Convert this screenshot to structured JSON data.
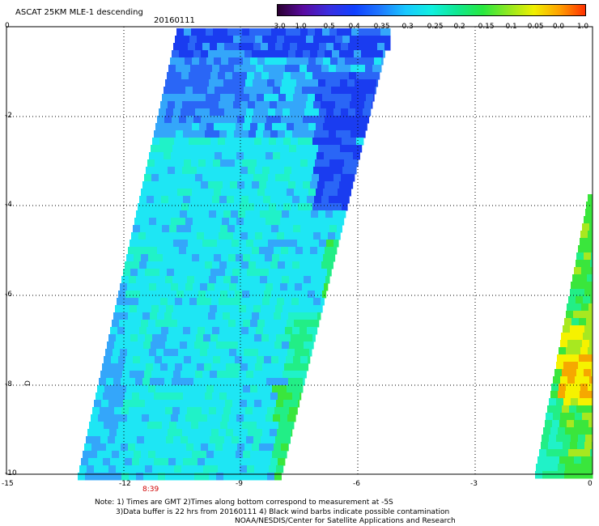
{
  "header": {
    "title": "ASCAT 25KM MLE-1 descending",
    "date": "20160111"
  },
  "colorbar": {
    "labels": [
      "-3.0",
      "-1.0",
      "-0.5",
      "-0.4",
      "-0.35",
      "-0.3",
      "-0.25",
      "-0.2",
      "-0.15",
      "-0.1",
      "-0.05",
      "0.0",
      "1.0"
    ],
    "colors": [
      "#2a0030",
      "#5a0aa0",
      "#3a2ee0",
      "#1040ff",
      "#1e78ff",
      "#18c8ff",
      "#10f0e0",
      "#10e890",
      "#28e840",
      "#90e820",
      "#f0f000",
      "#ffa000",
      "#ff3000"
    ]
  },
  "axes": {
    "x_ticks": [
      "-15",
      "-12",
      "-9",
      "-6",
      "-3",
      "0"
    ],
    "y_ticks": [
      "0",
      "-2",
      "-4",
      "-6",
      "-8",
      "-10"
    ]
  },
  "time_label": "8:39",
  "side_label": "D",
  "notes": {
    "line1": "Note: 1) Times are GMT 2)Times along bottom correspond to measurement at -5S",
    "line2": "3)Data buffer is 22 hrs from 20160111 4) Black wind barbs indicate possible contamination",
    "line3": "NOAA/NESDIS/Center for Satellite Applications and Research"
  },
  "palette": {
    "deep_blue": "#1a3cf0",
    "blue": "#2a66f6",
    "light_blue": "#34a6fa",
    "cyan": "#1ee6f4",
    "aqua": "#20f2c8",
    "green_cyan": "#22ee86",
    "green": "#3ae63c",
    "lime": "#a8e820",
    "yellow": "#f6f200",
    "orange": "#f6a800"
  }
}
